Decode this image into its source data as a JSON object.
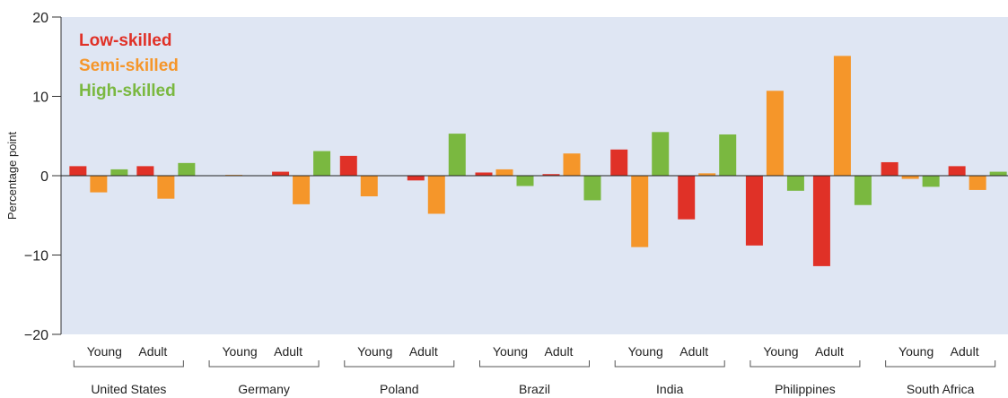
{
  "chart_data": {
    "type": "bar",
    "ylabel": "Percentage point",
    "ylim": [
      -20,
      20
    ],
    "yticks": [
      20,
      10,
      0,
      -10,
      -20
    ],
    "ytick_labels": [
      "20",
      "10",
      "0",
      "−10",
      "−20"
    ],
    "legend_placement": "top-left",
    "grid": false,
    "background_color": "#dfe6f3",
    "groups": [
      "United States",
      "Germany",
      "Poland",
      "Brazil",
      "India",
      "Philippines",
      "South Africa"
    ],
    "subgroups": [
      "Young",
      "Adult"
    ],
    "series": [
      {
        "name": "Low-skilled",
        "color": "#e03127",
        "values": [
          [
            1.2,
            1.2
          ],
          [
            0.0,
            0.5
          ],
          [
            2.5,
            -0.6
          ],
          [
            0.4,
            0.2
          ],
          [
            3.3,
            -5.5
          ],
          [
            -8.8,
            -11.4
          ],
          [
            1.7,
            1.2
          ]
        ]
      },
      {
        "name": "Semi-skilled",
        "color": "#f5962a",
        "values": [
          [
            -2.1,
            -2.9
          ],
          [
            0.1,
            -3.6
          ],
          [
            -2.6,
            -4.8
          ],
          [
            0.8,
            2.8
          ],
          [
            -9.0,
            0.3
          ],
          [
            10.7,
            15.1
          ],
          [
            -0.4,
            -1.8
          ]
        ]
      },
      {
        "name": "High-skilled",
        "color": "#7ab840",
        "values": [
          [
            0.8,
            1.6
          ],
          [
            0.0,
            3.1
          ],
          [
            0.0,
            5.3
          ],
          [
            -1.3,
            -3.1
          ],
          [
            5.5,
            5.2
          ],
          [
            -1.9,
            -3.7
          ],
          [
            -1.4,
            0.5
          ]
        ]
      }
    ]
  }
}
